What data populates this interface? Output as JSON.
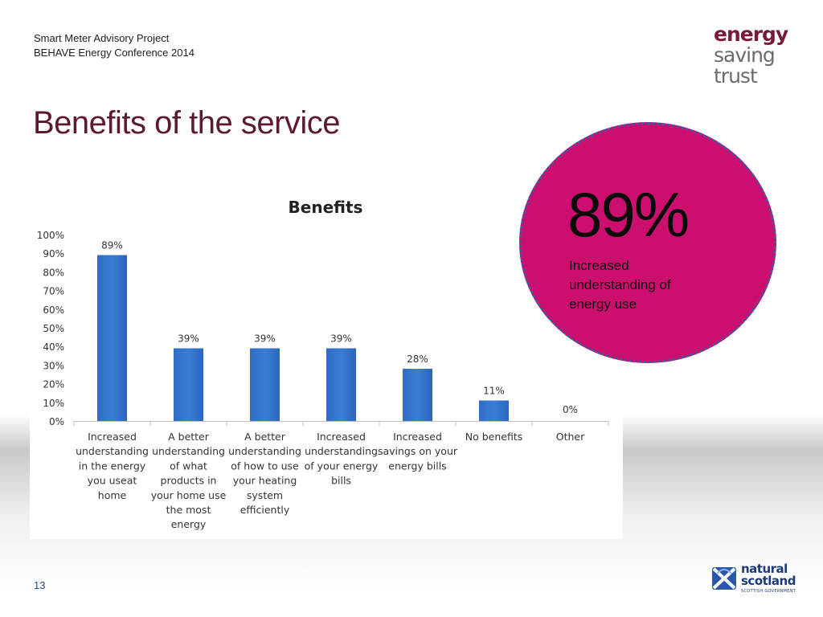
{
  "header": {
    "line1": "Smart Meter Advisory Project",
    "line2": "BEHAVE Energy Conference 2014"
  },
  "title": "Benefits of the service",
  "logo_top": {
    "word1": "energy",
    "word2": "saving",
    "word3": "trust"
  },
  "highlight": {
    "value": "89%",
    "caption": "Increased understanding of energy use",
    "fill_color": "#cc0e6e",
    "border_color": "#3b5aa0"
  },
  "chart_data": {
    "type": "bar",
    "title": "Benefits",
    "categories": [
      [
        "Increased",
        "understanding",
        "in the energy",
        "you useat",
        "home"
      ],
      [
        "A better",
        "understanding",
        "of what",
        "products in",
        "your home use",
        "the most",
        "energy"
      ],
      [
        "A better",
        "understanding",
        "of how to use",
        "your heating",
        "system",
        "efficiently"
      ],
      [
        "Increased",
        "understanding",
        "of your energy",
        "bills"
      ],
      [
        "Increased",
        "savings on your",
        "energy bills"
      ],
      [
        "No benefits"
      ],
      [
        "Other"
      ]
    ],
    "values": [
      89,
      39,
      39,
      39,
      28,
      11,
      0
    ],
    "data_labels": [
      "89%",
      "39%",
      "39%",
      "39%",
      "28%",
      "11%",
      "0%"
    ],
    "yticks": [
      "0%",
      "10%",
      "20%",
      "30%",
      "40%",
      "50%",
      "60%",
      "70%",
      "80%",
      "90%",
      "100%"
    ],
    "ylim": [
      0,
      100
    ],
    "bar_color": "#3a7dd6",
    "grid": false,
    "legend": "none"
  },
  "footer": {
    "slide_number": "13",
    "logo_line1": "natural",
    "logo_line2": "scotland",
    "logo_line3": "SCOTTISH GOVERNMENT"
  }
}
